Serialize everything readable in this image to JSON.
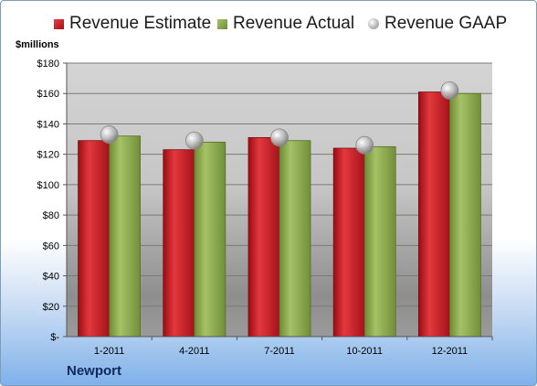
{
  "legend": [
    {
      "name": "Revenue Estimate",
      "color": "#c4161c"
    },
    {
      "name": "Revenue Actual",
      "color": "#8aaa4a"
    },
    {
      "name": "Revenue GAAP",
      "color": "#b8b8b8"
    }
  ],
  "unit_label": "$millions",
  "company": "Newport",
  "chart_data": {
    "type": "bar",
    "categories": [
      "1-2011",
      "4-2011",
      "7-2011",
      "10-2011",
      "12-2011"
    ],
    "series": [
      {
        "name": "Revenue Estimate",
        "type": "bar",
        "values": [
          129,
          123,
          131,
          124,
          161
        ]
      },
      {
        "name": "Revenue Actual",
        "type": "bar",
        "values": [
          132,
          128,
          129,
          125,
          160
        ]
      },
      {
        "name": "Revenue GAAP",
        "type": "scatter",
        "values": [
          133,
          129,
          131,
          126,
          162
        ]
      }
    ],
    "ylabel": "$millions",
    "ylim": [
      0,
      180
    ],
    "yticks": [
      0,
      20,
      40,
      60,
      80,
      100,
      120,
      140,
      160,
      180
    ],
    "ytick_labels": [
      "$-",
      "$20",
      "$40",
      "$60",
      "$80",
      "$100",
      "$120",
      "$140",
      "$160",
      "$180"
    ],
    "grid": true,
    "legend_position": "top"
  }
}
